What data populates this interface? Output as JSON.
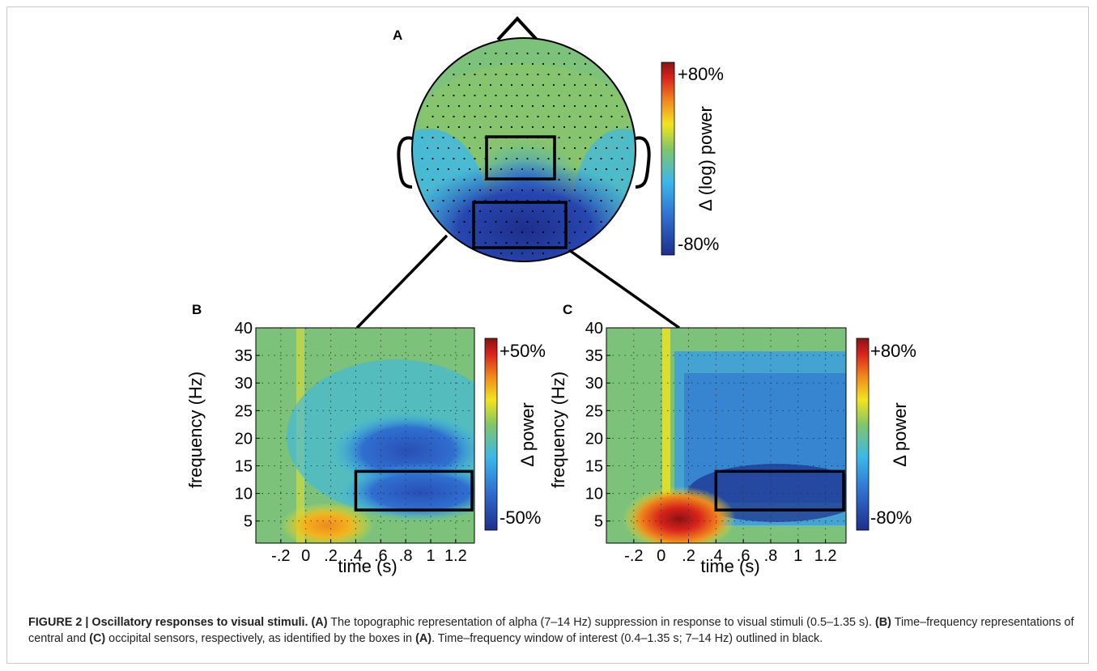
{
  "figure": {
    "panel_labels": [
      "A",
      "B",
      "C"
    ],
    "caption": {
      "label": "FIGURE 2 | Oscillatory responses to visual stimuli.",
      "ref_a": "(A)",
      "text_a": " The topographic representation of alpha (7–14 Hz) suppression in response to visual stimuli (0.5–1.35 s). ",
      "ref_b": "(B)",
      "text_b": " Time–frequency representations of central and ",
      "ref_c": "(C)",
      "text_c": " occipital sensors, respectively, as identified by the boxes in ",
      "ref_a2": "(A)",
      "text_end": ". Time–frequency window of interest (0.4–1.35 s; 7–14 Hz) outlined in black."
    },
    "colors": {
      "deep_blue": "#1e2f8c",
      "blue": "#2f6fd0",
      "cyan": "#3bb8ea",
      "green": "#80c66a",
      "yellow": "#f2e41e",
      "orange": "#f08a1c",
      "red": "#d8231c",
      "dark_red": "#8c1212"
    }
  },
  "chart_data": [
    {
      "type": "heatmap",
      "panel": "A",
      "description_type": "topographic map",
      "colorbar": {
        "label": "Δ (log) power",
        "max_label": "+80%",
        "min_label": "-80%",
        "range": [
          -80,
          80
        ]
      },
      "roi_boxes": [
        "central",
        "occipital"
      ]
    },
    {
      "type": "heatmap",
      "panel": "B",
      "xlabel": "time (s)",
      "ylabel": "frequency (Hz)",
      "xticks": [
        "-.2",
        "0",
        ".2",
        ".4",
        ".6",
        ".8",
        "1",
        "1.2"
      ],
      "xtick_values": [
        -0.2,
        0,
        0.2,
        0.4,
        0.6,
        0.8,
        1.0,
        1.2
      ],
      "yticks": [
        "5",
        "10",
        "15",
        "20",
        "25",
        "30",
        "35",
        "40"
      ],
      "ytick_values": [
        5,
        10,
        15,
        20,
        25,
        30,
        35,
        40
      ],
      "xlim": [
        -0.4,
        1.35
      ],
      "ylim": [
        1,
        40
      ],
      "window_of_interest": {
        "time": [
          0.4,
          1.35
        ],
        "frequency": [
          7,
          14
        ]
      },
      "colorbar": {
        "label": "Δ power",
        "max_label": "+50%",
        "min_label": "-50%",
        "range": [
          -50,
          50
        ]
      },
      "features": [
        {
          "name": "theta_increase",
          "t": 0.2,
          "f": 4,
          "value": 30
        },
        {
          "name": "beta_decrease",
          "t": 0.75,
          "f": 18,
          "value": -40
        },
        {
          "name": "alpha_decrease",
          "t": 0.85,
          "f": 10,
          "value": -45
        }
      ]
    },
    {
      "type": "heatmap",
      "panel": "C",
      "xlabel": "time (s)",
      "ylabel": "frequency (Hz)",
      "xticks": [
        "-.2",
        "0",
        ".2",
        ".4",
        ".6",
        ".8",
        "1",
        "1.2"
      ],
      "xtick_values": [
        -0.2,
        0,
        0.2,
        0.4,
        0.6,
        0.8,
        1.0,
        1.2
      ],
      "yticks": [
        "5",
        "10",
        "15",
        "20",
        "25",
        "30",
        "35",
        "40"
      ],
      "ytick_values": [
        5,
        10,
        15,
        20,
        25,
        30,
        35,
        40
      ],
      "xlim": [
        -0.4,
        1.35
      ],
      "ylim": [
        1,
        40
      ],
      "window_of_interest": {
        "time": [
          0.4,
          1.35
        ],
        "frequency": [
          7,
          14
        ]
      },
      "colorbar": {
        "label": "Δ power",
        "max_label": "+80%",
        "min_label": "-80%",
        "range": [
          -80,
          80
        ]
      },
      "features": [
        {
          "name": "theta_increase",
          "t": 0.15,
          "f": 5,
          "value": 75
        },
        {
          "name": "broadband_decrease",
          "t": 0.8,
          "f": 20,
          "value": -50
        },
        {
          "name": "alpha_decrease",
          "t": 0.85,
          "f": 10,
          "value": -70
        }
      ]
    }
  ]
}
